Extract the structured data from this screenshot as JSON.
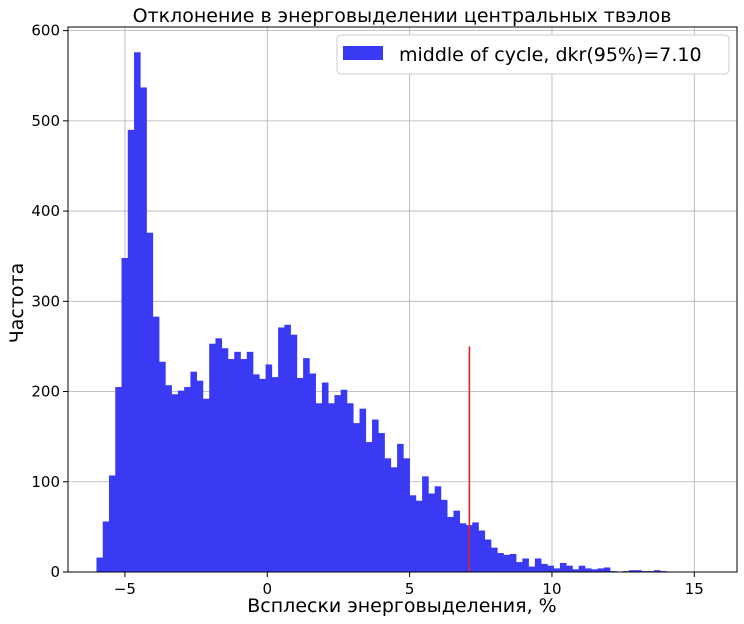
{
  "chart_data": {
    "type": "bar",
    "title": "Отклонение в энерговыделении центральных твэлов",
    "xlabel": "Всплески энерговыделения, %",
    "ylabel": "Частота",
    "xlim": [
      -7.0,
      16.5
    ],
    "ylim": [
      0,
      604
    ],
    "xticks": [
      -5,
      0,
      5,
      10,
      15
    ],
    "xtick_labels": [
      "−5",
      "0",
      "5",
      "10",
      "15"
    ],
    "yticks": [
      0,
      100,
      200,
      300,
      400,
      500,
      600
    ],
    "ytick_labels": [
      "0",
      "100",
      "200",
      "300",
      "400",
      "500",
      "600"
    ],
    "grid": true,
    "bin_start": -6.0,
    "bin_width": 0.22,
    "counts": [
      16,
      56,
      107,
      205,
      348,
      490,
      576,
      537,
      376,
      283,
      233,
      207,
      197,
      201,
      205,
      222,
      212,
      192,
      253,
      259,
      248,
      236,
      244,
      236,
      244,
      219,
      214,
      230,
      216,
      271,
      274,
      263,
      215,
      237,
      220,
      187,
      210,
      187,
      196,
      202,
      187,
      165,
      181,
      144,
      169,
      154,
      126,
      116,
      142,
      126,
      85,
      79,
      106,
      87,
      95,
      80,
      61,
      68,
      54,
      52,
      55,
      46,
      36,
      27,
      21,
      19,
      20,
      11,
      15,
      6,
      15,
      9,
      7,
      4,
      10,
      7,
      3,
      7,
      4,
      3,
      4,
      5,
      1,
      0,
      1,
      2,
      2,
      1,
      1,
      2,
      1
    ],
    "bar_color": "#3a3af5",
    "legend": {
      "label": "middle of cycle, dkr(95%)=7.10",
      "location": "upper right"
    },
    "marker_line": {
      "x": 7.1,
      "y_range": [
        0,
        250
      ],
      "color": "#e8202a"
    }
  }
}
